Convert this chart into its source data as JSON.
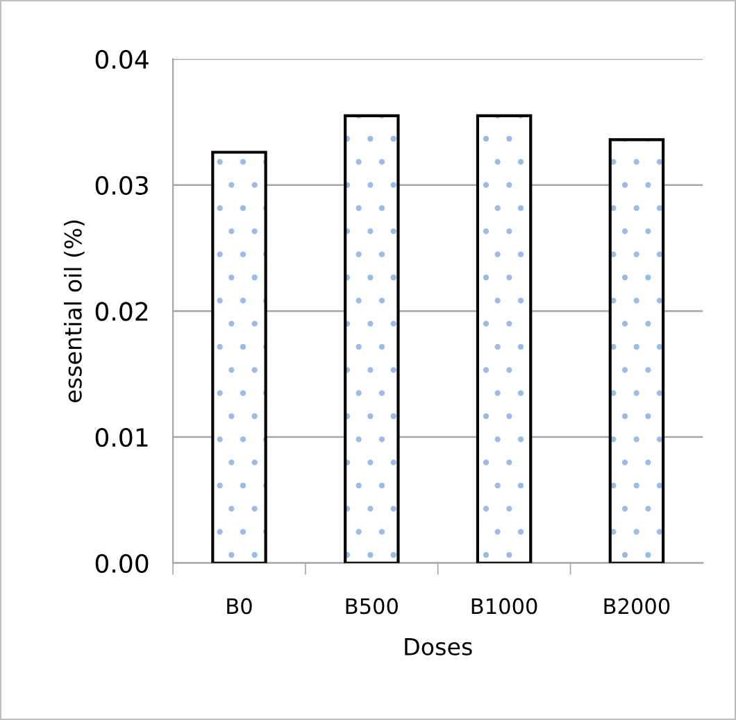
{
  "chart_data": {
    "type": "bar",
    "xlabel": "Doses",
    "ylabel": "essential oil (%)",
    "categories": [
      "B0",
      "B500",
      "B1000",
      "B2000"
    ],
    "values": [
      0.0326,
      0.0355,
      0.0355,
      0.0336
    ],
    "color": "#000000",
    "ylim": [
      0,
      0.04
    ],
    "yticks": [
      {
        "value": 0,
        "label": "0.00"
      },
      {
        "value": 0.01,
        "label": "0.01"
      },
      {
        "value": 0.02,
        "label": "0.02"
      },
      {
        "value": 0.03,
        "label": "0.03"
      },
      {
        "value": 0.04,
        "label": "0.04"
      }
    ],
    "grid": "y",
    "legend": false
  }
}
